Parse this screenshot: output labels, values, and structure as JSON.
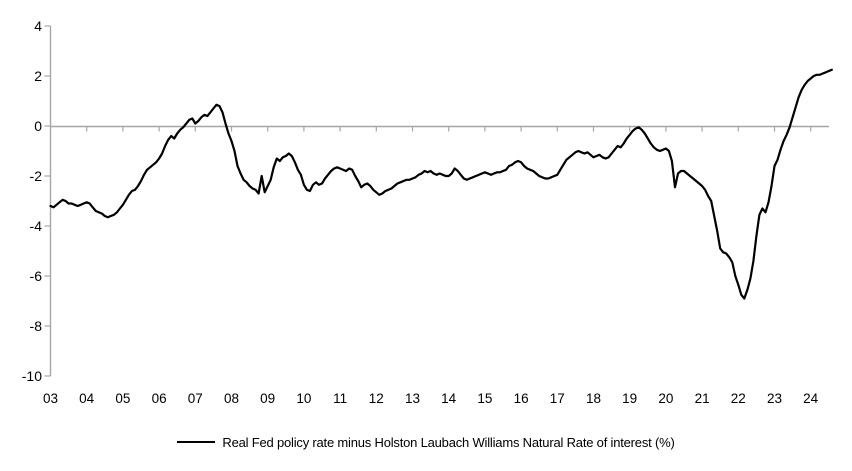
{
  "page": {
    "background": "#ffffff"
  },
  "legend": {
    "label": "Real Fed policy rate minus Holston Laubach Williams Natural Rate of interest (%)",
    "marker_color": "#000000"
  },
  "chart_data": {
    "type": "line",
    "title": "",
    "xlabel": "",
    "ylabel": "",
    "ylim": [
      -10,
      4
    ],
    "xlim_years": [
      2003.0,
      2024.7
    ],
    "y_ticks": [
      4,
      2,
      0,
      -2,
      -4,
      -6,
      -8,
      -10
    ],
    "x_tick_labels": [
      "03",
      "04",
      "05",
      "06",
      "07",
      "08",
      "09",
      "10",
      "11",
      "12",
      "13",
      "14",
      "15",
      "16",
      "17",
      "18",
      "19",
      "20",
      "21",
      "22",
      "23",
      "24"
    ],
    "grid": "zero-line-only",
    "legend_position": "bottom-center",
    "colors": {
      "axis": "#a6a6a6",
      "series": "#000000",
      "tick_text": "#000000"
    },
    "series": [
      {
        "name": "Real Fed policy rate minus Holston Laubach Williams Natural Rate of interest (%)",
        "color": "#000000",
        "start_year": 2003.0,
        "interval_months": 1,
        "values": [
          -3.2,
          -3.25,
          -3.15,
          -3.05,
          -2.95,
          -3.0,
          -3.1,
          -3.1,
          -3.15,
          -3.2,
          -3.15,
          -3.1,
          -3.05,
          -3.1,
          -3.25,
          -3.4,
          -3.45,
          -3.5,
          -3.6,
          -3.65,
          -3.6,
          -3.55,
          -3.45,
          -3.3,
          -3.15,
          -2.95,
          -2.75,
          -2.6,
          -2.55,
          -2.4,
          -2.2,
          -1.95,
          -1.75,
          -1.65,
          -1.55,
          -1.45,
          -1.3,
          -1.1,
          -0.8,
          -0.55,
          -0.4,
          -0.5,
          -0.3,
          -0.15,
          -0.05,
          0.1,
          0.25,
          0.3,
          0.1,
          0.2,
          0.35,
          0.45,
          0.4,
          0.55,
          0.7,
          0.85,
          0.8,
          0.55,
          0.1,
          -0.3,
          -0.6,
          -1.0,
          -1.6,
          -1.9,
          -2.15,
          -2.25,
          -2.4,
          -2.5,
          -2.55,
          -2.7,
          -2.0,
          -2.65,
          -2.4,
          -2.15,
          -1.65,
          -1.3,
          -1.4,
          -1.25,
          -1.2,
          -1.1,
          -1.2,
          -1.45,
          -1.75,
          -1.95,
          -2.35,
          -2.55,
          -2.6,
          -2.35,
          -2.25,
          -2.35,
          -2.3,
          -2.1,
          -1.95,
          -1.8,
          -1.7,
          -1.65,
          -1.7,
          -1.75,
          -1.8,
          -1.7,
          -1.75,
          -2.0,
          -2.2,
          -2.45,
          -2.35,
          -2.3,
          -2.4,
          -2.55,
          -2.65,
          -2.75,
          -2.7,
          -2.6,
          -2.55,
          -2.5,
          -2.4,
          -2.3,
          -2.25,
          -2.2,
          -2.15,
          -2.15,
          -2.1,
          -2.05,
          -1.95,
          -1.9,
          -1.8,
          -1.85,
          -1.8,
          -1.9,
          -1.95,
          -1.9,
          -1.95,
          -2.0,
          -2.0,
          -1.9,
          -1.7,
          -1.8,
          -1.95,
          -2.1,
          -2.15,
          -2.1,
          -2.05,
          -2.0,
          -1.95,
          -1.9,
          -1.85,
          -1.9,
          -1.95,
          -1.9,
          -1.85,
          -1.85,
          -1.8,
          -1.75,
          -1.6,
          -1.55,
          -1.45,
          -1.4,
          -1.45,
          -1.6,
          -1.7,
          -1.75,
          -1.8,
          -1.9,
          -2.0,
          -2.05,
          -2.1,
          -2.1,
          -2.05,
          -2.0,
          -1.95,
          -1.75,
          -1.55,
          -1.35,
          -1.25,
          -1.15,
          -1.05,
          -1.0,
          -1.05,
          -1.1,
          -1.05,
          -1.15,
          -1.25,
          -1.2,
          -1.15,
          -1.25,
          -1.3,
          -1.25,
          -1.1,
          -0.95,
          -0.8,
          -0.85,
          -0.7,
          -0.5,
          -0.35,
          -0.2,
          -0.1,
          -0.05,
          -0.15,
          -0.3,
          -0.5,
          -0.7,
          -0.85,
          -0.95,
          -1.0,
          -0.95,
          -0.9,
          -1.0,
          -1.4,
          -2.45,
          -1.9,
          -1.8,
          -1.8,
          -1.9,
          -2.0,
          -2.1,
          -2.2,
          -2.3,
          -2.4,
          -2.55,
          -2.8,
          -3.0,
          -3.6,
          -4.2,
          -4.9,
          -5.05,
          -5.1,
          -5.25,
          -5.45,
          -6.0,
          -6.35,
          -6.75,
          -6.9,
          -6.55,
          -6.1,
          -5.4,
          -4.4,
          -3.55,
          -3.3,
          -3.45,
          -3.05,
          -2.4,
          -1.6,
          -1.35,
          -0.95,
          -0.6,
          -0.35,
          -0.05,
          0.35,
          0.75,
          1.15,
          1.45,
          1.65,
          1.8,
          1.9,
          2.0,
          2.05,
          2.05,
          2.1,
          2.15,
          2.2,
          2.25
        ]
      }
    ]
  }
}
